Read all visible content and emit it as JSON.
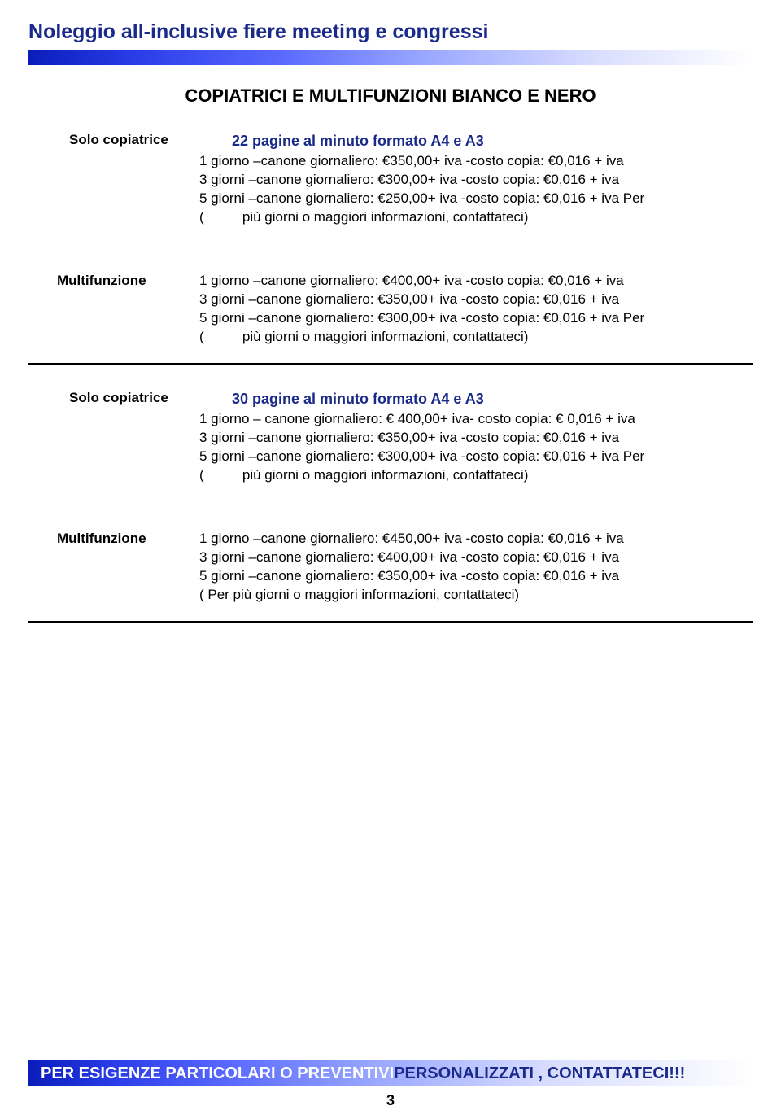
{
  "page": {
    "title": "Noleggio all-inclusive fiere meeting e congressi",
    "number": "3"
  },
  "colors": {
    "brand_blue": "#1a2a8a",
    "gradient_start": "#0a1dbb",
    "gradient_end": "#ffffff"
  },
  "section_heading": "COPIATRICI E MULTIFUNZIONI BIANCO E NERO",
  "blocks": [
    {
      "format_title": "22 pagine al minuto formato A4 e A3",
      "label": "Solo copiatrice",
      "lines": [
        "1 giorno –canone giornaliero: €350,00+  iva  -costo copia: €0,016 + iva",
        "3 giorni  –canone giornaliero: €300,00+  iva  -costo copia: €0,016 + iva",
        "5 giorni  –canone giornaliero: €250,00+  iva  -costo copia: €0,016 + iva   Per",
        "(          più giorni o maggiori informazioni, contattateci)"
      ]
    },
    {
      "format_title": "",
      "label": "Multifunzione",
      "lines": [
        "1 giorno –canone giornaliero: €400,00+  iva  -costo copia: €0,016 + iva",
        "3 giorni  –canone giornaliero: €350,00+  iva  -costo copia: €0,016 + iva",
        "5 giorni  –canone giornaliero: €300,00+  iva  -costo copia: €0,016 + iva   Per",
        "(          più giorni o maggiori informazioni, contattateci)"
      ]
    },
    {
      "format_title": "30 pagine al minuto formato A4 e A3",
      "label": "Solo copiatrice",
      "lines": [
        "1 giorno – canone giornaliero: € 400,00+  iva- costo copia: € 0,016 + iva",
        "3 giorni  –canone giornaliero: €350,00+  iva  -costo copia: €0,016 + iva",
        "5 giorni  –canone giornaliero: €300,00+  iva  -costo copia: €0,016 + iva   Per",
        "(          più giorni o maggiori informazioni, contattateci)"
      ]
    },
    {
      "format_title": "",
      "label": "Multifunzione",
      "lines": [
        "1 giorno –canone giornaliero: €450,00+  iva  -costo copia: €0,016 + iva",
        "3 giorni  –canone giornaliero: €400,00+  iva  -costo copia: €0,016 + iva",
        "5 giorni  –canone giornaliero: €350,00+  iva  -costo copia: €0,016 + iva",
        "( Per più giorni o maggiori informazioni, contattateci)"
      ]
    }
  ],
  "footer": {
    "white_text": "PER ESIGENZE PARTICOLARI O PREVENTIVI ",
    "blue_text": "PERSONALIZZATI , CONTATTATECI!!!"
  }
}
